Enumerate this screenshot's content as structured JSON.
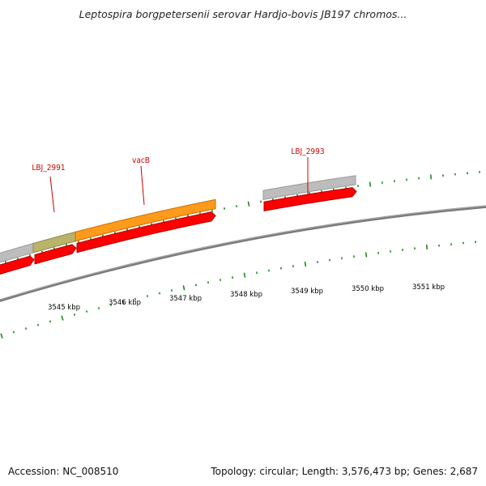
{
  "title": "Leptospira borgpetersenii serovar Hardjo-bovis JB197 chromos...",
  "footer": {
    "accession": "Accession: NC_008510",
    "summary": "Topology: circular; Length: 3,576,473 bp; Genes: 2,687"
  },
  "colors": {
    "backbone": "#808080",
    "gene_red": "#ff0000",
    "gene_grey": "#bdbdbd",
    "gene_orange": "#ff9a1a",
    "gene_olive": "#b9b46a",
    "tick": "#1a8a1a",
    "label_red": "#cc0000",
    "tick_label": "#000000"
  },
  "gene_labels": [
    {
      "id": "label-lbj2991",
      "text": "LBJ_2991"
    },
    {
      "id": "label-vacb",
      "text": "vacB"
    },
    {
      "id": "label-lbj2993",
      "text": "LBJ_2993"
    }
  ],
  "kbp_labels": [
    "3545 kbp",
    "3546 kbp",
    "3547 kbp",
    "3548 kbp",
    "3549 kbp",
    "3550 kbp",
    "3551 kbp"
  ]
}
